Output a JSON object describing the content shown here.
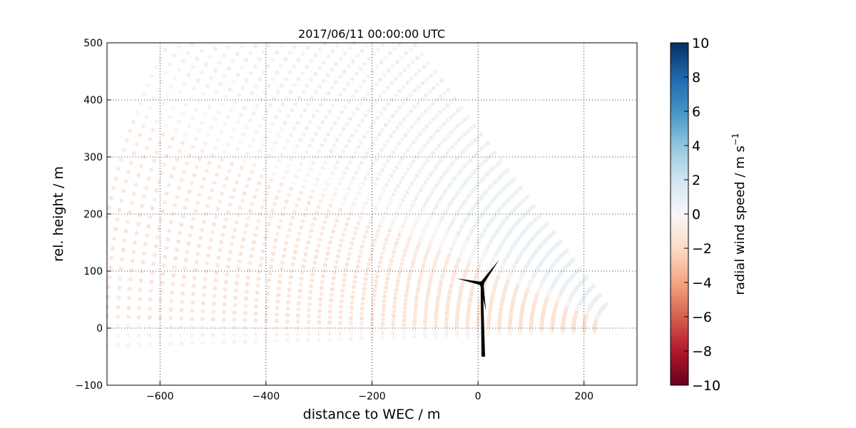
{
  "chart_data": {
    "type": "scatter",
    "title": "2017/06/11 00:00:00 UTC",
    "xlabel": "distance to WEC / m",
    "ylabel": "rel. height / m",
    "xlim": [
      -700,
      300
    ],
    "ylim": [
      -100,
      500
    ],
    "xticks": [
      "−600",
      "−400",
      "−200",
      "0",
      "200"
    ],
    "xtick_values": [
      -600,
      -400,
      -200,
      0,
      200
    ],
    "yticks": [
      "−100",
      "0",
      "100",
      "200",
      "300",
      "400",
      "500"
    ],
    "ytick_values": [
      -100,
      0,
      100,
      200,
      300,
      400,
      500
    ],
    "grid": true,
    "colorbar": {
      "label": "radial wind speed / m s",
      "label_superscript": "−1",
      "range": [
        -10,
        10
      ],
      "ticks": [
        "10",
        "8",
        "6",
        "4",
        "2",
        "0",
        "−2",
        "−4",
        "−6",
        "−8",
        "−10"
      ],
      "tick_values": [
        10,
        8,
        6,
        4,
        2,
        0,
        -2,
        -4,
        -6,
        -8,
        -10
      ],
      "colormap": "RdBu",
      "colormap_stops": [
        "#67001f",
        "#b2182b",
        "#d6604d",
        "#f4a582",
        "#fddbc7",
        "#f7f7f7",
        "#d1e5f0",
        "#92c5de",
        "#4393c3",
        "#2166ac",
        "#053061"
      ]
    },
    "scan": {
      "origin_m": [
        280,
        -5
      ],
      "elevation_deg": {
        "start": -1.5,
        "end": 52,
        "step": 1
      },
      "range_gates_m": {
        "start": 60,
        "end": 1000,
        "step": 20
      },
      "radial_wind_speed_by_elevation": [
        {
          "max_elevation_deg": 0.5,
          "value": -0.3
        },
        {
          "max_elevation_deg": 14,
          "value": -1.5
        },
        {
          "max_elevation_deg": 22,
          "value": -1.2
        },
        {
          "max_elevation_deg": 28,
          "value": -0.3
        },
        {
          "max_elevation_deg": 52,
          "value": 0.7
        }
      ]
    },
    "wind_turbine": {
      "tower_base_m": [
        10,
        -50
      ],
      "hub_m": [
        7,
        78
      ],
      "blade_tips_m": [
        [
          -40,
          87
        ],
        [
          40,
          120
        ],
        [
          15,
          30
        ]
      ]
    }
  }
}
